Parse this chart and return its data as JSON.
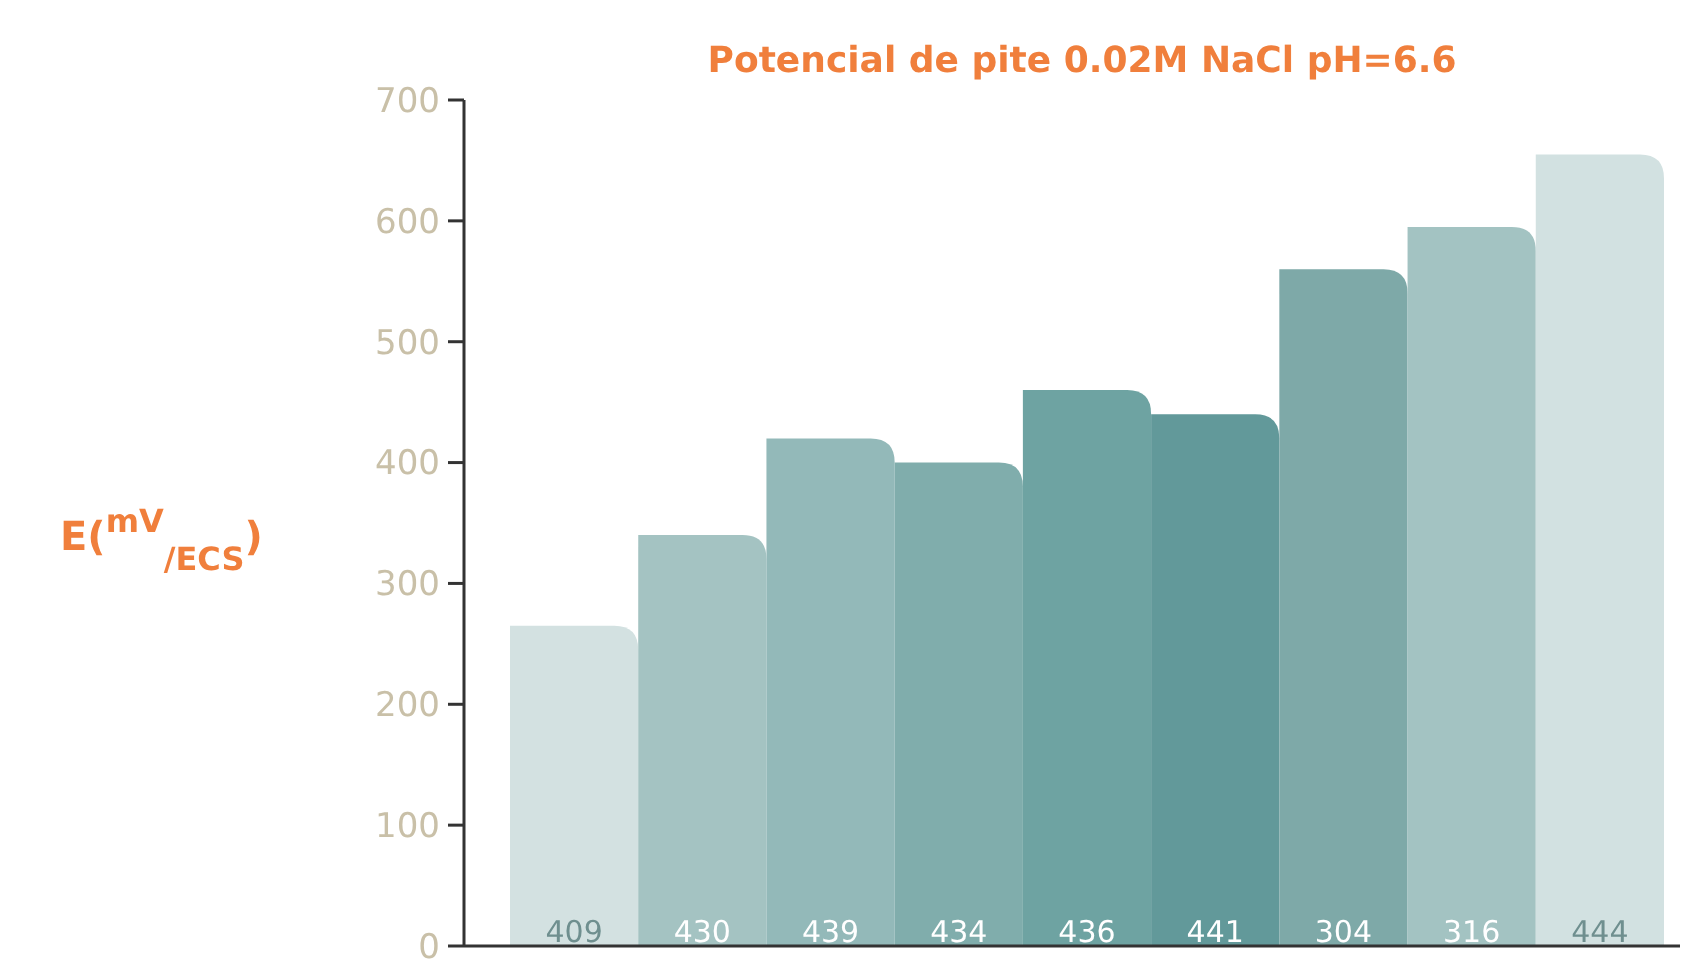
{
  "chart_data": {
    "type": "bar",
    "title": "Potencial de pite 0.02M NaCl  pH=6.6",
    "ylabel": "E($^{mV}$$_{/ECS}$)",
    "categories": [
      "409",
      "430",
      "439",
      "434",
      "436",
      "441",
      "304",
      "316",
      "444"
    ],
    "values": [
      265,
      340,
      420,
      400,
      460,
      440,
      560,
      595,
      655
    ],
    "colors": [
      "#d3e1e1",
      "#a4c3c2",
      "#93b9b9",
      "#80adac",
      "#6ea3a2",
      "#62999a",
      "#7ea9a8",
      "#a3c3c2",
      "#d2e1e1"
    ],
    "ylim": [
      0,
      700
    ],
    "yticks": [
      0,
      100,
      200,
      300,
      400,
      500,
      600,
      700
    ],
    "grid": false
  }
}
